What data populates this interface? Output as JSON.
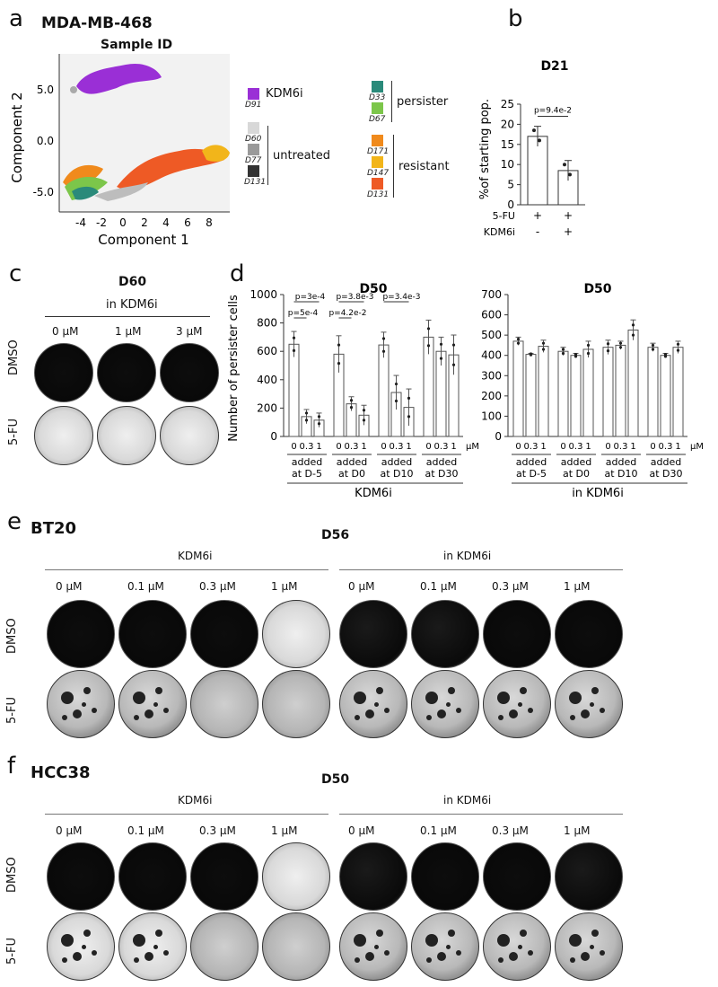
{
  "panels": {
    "a": {
      "letter": "a",
      "title": "MDA-MB-468",
      "subtitle": "Sample ID",
      "xlabel": "Component 1",
      "ylabel": "Component 2",
      "xticks": [
        "-4",
        "-2",
        "0",
        "2",
        "4",
        "6",
        "8"
      ],
      "yticks": [
        "5.0",
        "0.0",
        "-5.0"
      ],
      "legend_left": [
        {
          "color": "#9a2fd6",
          "label": "D91"
        },
        {
          "color": "#d8d8d8",
          "label": "D60"
        },
        {
          "color": "#9a9a9a",
          "label": "D77"
        },
        {
          "color": "#333333",
          "label": "D131"
        }
      ],
      "legend_right": [
        {
          "color": "#2a8a7a",
          "label": "D33"
        },
        {
          "color": "#7cc64a",
          "label": "D67"
        },
        {
          "color": "#f08a1c",
          "label": "D171"
        },
        {
          "color": "#f2b51a",
          "label": "D147"
        },
        {
          "color": "#ee5a25",
          "label": "D131"
        }
      ],
      "groups": {
        "kdm6i": "KDM6i",
        "untreated": "untreated",
        "persister": "persister",
        "resistant": "resistant"
      }
    },
    "b": {
      "letter": "b",
      "title": "D21",
      "ylabel": "%of starting pop.",
      "pvalue": "p=9.4e-2",
      "row1_label": "5-FU",
      "row1": [
        "+",
        "+"
      ],
      "row2_label": "KDM6i",
      "row2": [
        "-",
        "+"
      ]
    },
    "c": {
      "letter": "c",
      "title": "D60",
      "group": "in KDM6i",
      "doses": [
        "0 μM",
        "1 μM",
        "3 μM"
      ],
      "rows": [
        "DMSO",
        "5-FU"
      ]
    },
    "d": {
      "letter": "d",
      "title1": "D50",
      "title2": "D50",
      "ylabel": "Number of persister cells",
      "dose_ticks": [
        "0",
        "0.3",
        "1"
      ],
      "unit": "μM",
      "group_labels1": [
        [
          "added",
          "at D-5"
        ],
        [
          "added",
          "at D0"
        ],
        [
          "added",
          "at D10"
        ],
        [
          "added",
          "at D30"
        ]
      ],
      "group_labels2": [
        [
          "added",
          "at D-5"
        ],
        [
          "added",
          "at D0"
        ],
        [
          "added",
          "at D10"
        ],
        [
          "added",
          "at D30"
        ]
      ],
      "axis_title1": "KDM6i",
      "axis_title2": "in KDM6i",
      "pvals": {
        "p1": "p=3e-4",
        "p2": "p=5e-4",
        "p3": "p=3.8e-3",
        "p4": "p=4.2e-2",
        "p5": "p=3.4e-3"
      }
    },
    "e": {
      "letter": "e",
      "cell": "BT20",
      "title": "D56",
      "group1": "KDM6i",
      "group2": "in KDM6i",
      "doses": [
        "0 μM",
        "0.1 μM",
        "0.3 μM",
        "1 μM",
        "0 μM",
        "0.1 μM",
        "0.3 μM",
        "1 μM"
      ],
      "rows": [
        "DMSO",
        "5-FU"
      ]
    },
    "f": {
      "letter": "f",
      "cell": "HCC38",
      "title": "D50",
      "group1": "KDM6i",
      "group2": "in KDM6i",
      "doses": [
        "0 μM",
        "0.1 μM",
        "0.3 μM",
        "1 μM",
        "0 μM",
        "0.1 μM",
        "0.3 μM",
        "1 μM"
      ],
      "rows": [
        "DMSO",
        "5-FU"
      ]
    }
  },
  "chart_data": [
    {
      "type": "bar",
      "id": "b",
      "title": "D21",
      "ylabel": "%of starting pop.",
      "ylim": [
        0,
        25
      ],
      "yticks": [
        0,
        5,
        10,
        15,
        20,
        25
      ],
      "categories": [
        "5-FU",
        "5-FU+KDM6i"
      ],
      "values": [
        17,
        8.5
      ],
      "errors": [
        2.5,
        2.5
      ]
    },
    {
      "type": "bar",
      "id": "d1",
      "title": "D50",
      "ylabel": "Number of persister cells",
      "ylim": [
        0,
        1000
      ],
      "yticks": [
        0,
        200,
        400,
        600,
        800,
        1000
      ],
      "categories": [
        "0",
        "0.3",
        "1",
        "0",
        "0.3",
        "1",
        "0",
        "0.3",
        "1",
        "0",
        "0.3",
        "1"
      ],
      "values": [
        650,
        140,
        115,
        580,
        230,
        150,
        645,
        310,
        205,
        700,
        600,
        575
      ],
      "errors": [
        90,
        50,
        50,
        130,
        50,
        70,
        90,
        120,
        130,
        120,
        100,
        140
      ]
    },
    {
      "type": "bar",
      "id": "d2",
      "title": "D50",
      "ylim": [
        0,
        700
      ],
      "yticks": [
        0,
        100,
        200,
        300,
        400,
        500,
        600,
        700
      ],
      "categories": [
        "0",
        "0.3",
        "1",
        "0",
        "0.3",
        "1",
        "0",
        "0.3",
        "1",
        "0",
        "0.3",
        "1"
      ],
      "values": [
        470,
        405,
        445,
        420,
        400,
        430,
        440,
        450,
        525,
        440,
        400,
        440
      ],
      "errors": [
        20,
        5,
        30,
        20,
        10,
        40,
        35,
        20,
        50,
        20,
        10,
        30
      ]
    },
    {
      "type": "scatter",
      "id": "a",
      "title": "MDA-MB-468",
      "xlabel": "Component 1",
      "ylabel": "Component 2",
      "xlim": [
        -5.5,
        9
      ],
      "ylim": [
        -8,
        9
      ]
    }
  ]
}
